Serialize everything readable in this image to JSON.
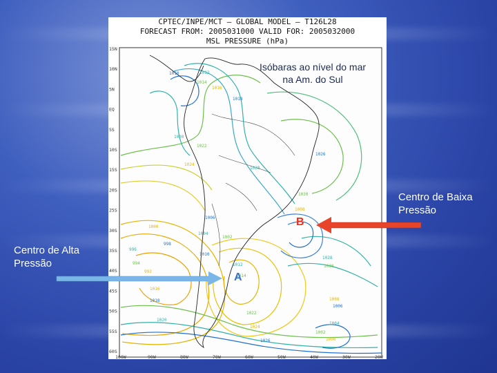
{
  "slide": {
    "background_color": "#2f4eb0",
    "annotation": "Isóbaras ao nível do mar na Am. do Sul",
    "low_pressure_label": "Centro de Baixa Pressão",
    "high_pressure_label": "Centro de Alta Pressão",
    "low_arrow_color": "#e8442a",
    "high_arrow_color": "#7ab6e8"
  },
  "map": {
    "header_line1": "CPTEC/INPE/MCT — GLOBAL MODEL — T126L28",
    "header_line2": "FORECAST FROM: 2005031000 VALID FOR: 2005032000",
    "header_line3": "MSL PRESSURE (hPa)",
    "low_marker": "B",
    "high_marker": "A",
    "lat_labels": [
      "15N",
      "10N",
      "5N",
      "EQ",
      "5S",
      "10S",
      "15S",
      "20S",
      "25S",
      "30S",
      "35S",
      "40S",
      "45S",
      "50S",
      "55S",
      "60S"
    ],
    "lon_labels": [
      "100W",
      "90W",
      "80W",
      "70W",
      "60W",
      "50W",
      "40W",
      "30W",
      "20W"
    ],
    "isobar_labels": [
      "1010",
      "1012",
      "1014",
      "1016",
      "1018",
      "1020",
      "1022",
      "1024",
      "1026",
      "1028",
      "1030",
      "1008",
      "1006",
      "1004",
      "1002",
      "1000",
      "998",
      "996",
      "994",
      "992"
    ],
    "colors": {
      "land_border": "#222222",
      "isobar_low": "#1f6fcf",
      "isobar_mid": "#2fb2a8",
      "isobar_green": "#6cc04a",
      "isobar_high": "#e6b400",
      "marker_low": "#e83020",
      "marker_high": "#3a6fd0"
    }
  }
}
